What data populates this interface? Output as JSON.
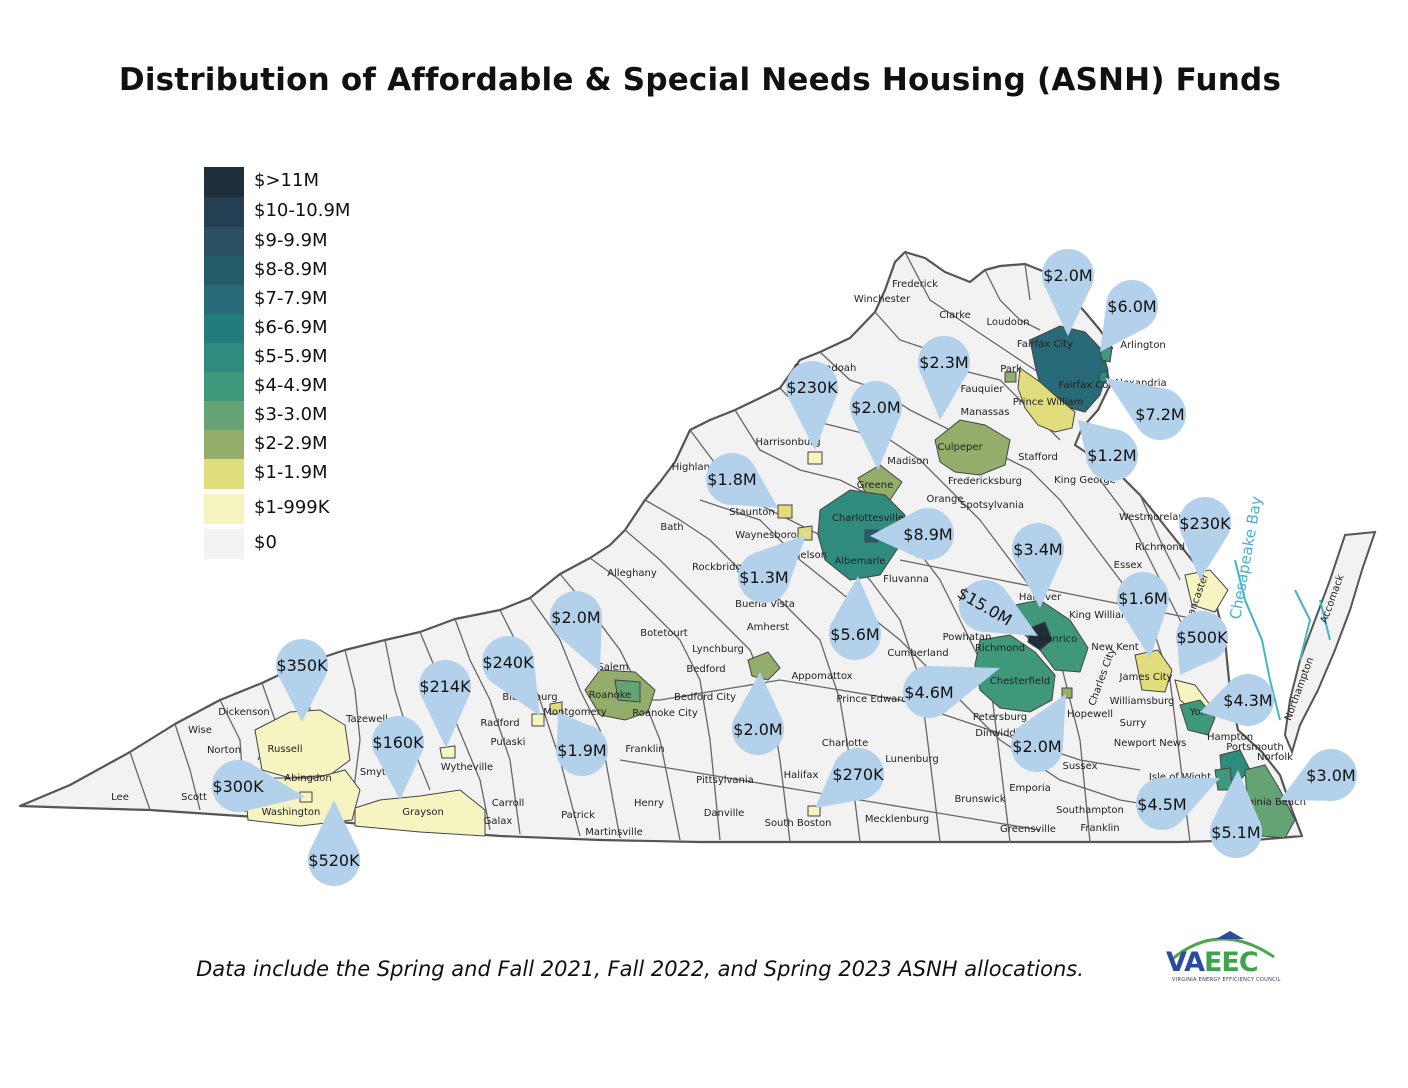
{
  "title": "Distribution of Affordable & Special Needs Housing (ASNH) Funds",
  "footnote": "Data include the Spring and Fall 2021, Fall 2022, and Spring 2023 ASNH allocations.",
  "logo": {
    "text": "VAEEC",
    "subtitle": "VIRGINIA ENERGY EFFICIENCY COUNCIL"
  },
  "legend": [
    {
      "label": "$>11M",
      "color": "#1e2f3b"
    },
    {
      "label": "$10-10.9M",
      "color": "#233f51"
    },
    {
      "label": "$9-9.9M",
      "color": "#2b5064"
    },
    {
      "label": "$8-8.9M",
      "color": "#245c6a"
    },
    {
      "label": "$7-7.9M",
      "color": "#286a78"
    },
    {
      "label": "$6-6.9M",
      "color": "#237b7c"
    },
    {
      "label": "$5-5.9M",
      "color": "#2f8b7e"
    },
    {
      "label": "$4-4.9M",
      "color": "#3f977c"
    },
    {
      "label": "$3-3.0M",
      "color": "#64a373"
    },
    {
      "label": "$2-2.9M",
      "color": "#94ad6a"
    },
    {
      "label": "$1-1.9M",
      "color": "#e1dc7c"
    },
    {
      "label": "$1-999K",
      "color": "#f6f5c2"
    },
    {
      "label": "$0",
      "color": "#f2f2f2"
    }
  ],
  "pins": [
    {
      "value": "$2.0M"
    },
    {
      "value": "$6.0M"
    },
    {
      "value": "$2.3M"
    },
    {
      "value": "$230K"
    },
    {
      "value": "$2.0M"
    },
    {
      "value": "$7.2M"
    },
    {
      "value": "$1.2M"
    },
    {
      "value": "$1.8M"
    },
    {
      "value": "$8.9M"
    },
    {
      "value": "$1.3M"
    },
    {
      "value": "$3.4M"
    },
    {
      "value": "$230K"
    },
    {
      "value": "$15.0M"
    },
    {
      "value": "$5.6M"
    },
    {
      "value": "$1.6M"
    },
    {
      "value": "$500K"
    },
    {
      "value": "$2.0M"
    },
    {
      "value": "$350K"
    },
    {
      "value": "$240K"
    },
    {
      "value": "$214K"
    },
    {
      "value": "$4.6M"
    },
    {
      "value": "$4.3M"
    },
    {
      "value": "$160K"
    },
    {
      "value": "$1.9M"
    },
    {
      "value": "$2.0M"
    },
    {
      "value": "$2.0M"
    },
    {
      "value": "$300K"
    },
    {
      "value": "$270K"
    },
    {
      "value": "$3.0M"
    },
    {
      "value": "$4.5M"
    },
    {
      "value": "$5.1M"
    },
    {
      "value": "$520K"
    }
  ],
  "places": [
    "Frederick",
    "Winchester",
    "Clarke",
    "Loudoun",
    "Arlington",
    "Fairfax City",
    "Fairfax Co.",
    "Alexandria",
    "Prince William",
    "Park",
    "Manassas",
    "Fauquier",
    "Shenandoah",
    "Culpeper",
    "Stafford",
    "King George",
    "Harrisonburg",
    "Madison",
    "Greene",
    "Orange",
    "Spotsylvania",
    "Fredericksburg",
    "Highland",
    "Staunton",
    "Waynesboro",
    "Charlottesville",
    "Albemarle",
    "Fluvanna",
    "Nelson",
    "Bath",
    "Alleghany",
    "Rockbridge",
    "Buena Vista",
    "Amherst",
    "Botetourt",
    "Hanover",
    "Henrico",
    "Richmond",
    "Chesterfield",
    "Powhatan",
    "Cumberland",
    "Appomattox",
    "Lynchburg",
    "Bedford",
    "Bedford City",
    "Salem",
    "Roanoke",
    "Roanoke City",
    "Blacksburg",
    "Montgomery",
    "Radford",
    "Pulaski",
    "Franklin",
    "Prince Edward",
    "Charlotte",
    "Lunenburg",
    "Pittsylvania",
    "Danville",
    "Halifax",
    "South Boston",
    "Mecklenburg",
    "Henry",
    "Martinsville",
    "Patrick",
    "Carroll",
    "Galax",
    "Grayson",
    "Wytheville",
    "Smyth",
    "Tazewell",
    "Russell",
    "Dickenson",
    "Wise",
    "Norton",
    "Scott",
    "Lee",
    "Abingdon",
    "Washington",
    "Petersburg",
    "Dinwiddie",
    "Hopewell",
    "Sussex",
    "Surry",
    "Emporia",
    "Brunswick",
    "Greensville",
    "Southampton",
    "Franklin",
    "James City",
    "Williamsburg",
    "York",
    "Hampton",
    "Newport News",
    "Isle of Wight",
    "Portsmouth",
    "Norfolk",
    "Virginia Beach",
    "New Kent",
    "Charles City",
    "King William",
    "Essex",
    "Richmond",
    "Westmoreland",
    "Lancaster",
    "Accomack",
    "Northampton",
    "Chesapeake Bay"
  ]
}
